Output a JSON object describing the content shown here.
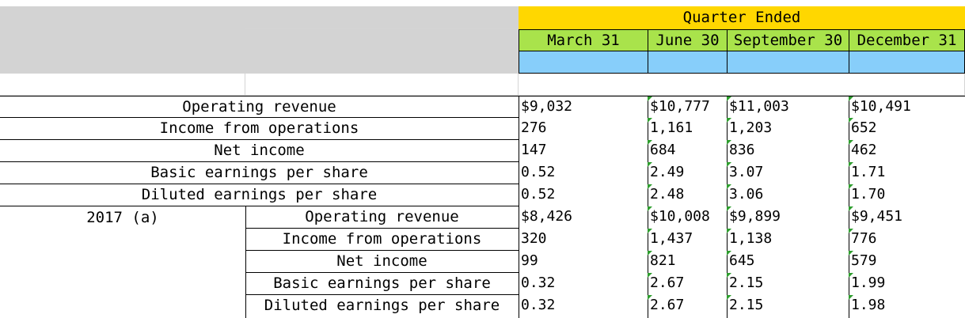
{
  "header": {
    "group_title": "Quarter Ended",
    "quarters": [
      "March 31",
      "June 30",
      "September 30",
      "December 31"
    ]
  },
  "sections": [
    {
      "label": "",
      "rows": [
        {
          "metric": "Operating revenue",
          "values": [
            "$9,032",
            "$10,777",
            "$11,003",
            "$10,491"
          ]
        },
        {
          "metric": "Income from operations",
          "values": [
            "276",
            "1,161",
            "1,203",
            "652"
          ]
        },
        {
          "metric": "Net income",
          "values": [
            "147",
            "684",
            "836",
            "462"
          ]
        },
        {
          "metric": "Basic earnings per share",
          "values": [
            "0.52",
            "2.49",
            "3.07",
            "1.71"
          ]
        },
        {
          "metric": "Diluted earnings per share",
          "values": [
            "0.52",
            "2.48",
            "3.06",
            "1.70"
          ]
        }
      ]
    },
    {
      "label": "2017 (a)",
      "rows": [
        {
          "metric": "Operating revenue",
          "values": [
            "$8,426",
            "$10,008",
            "$9,899",
            "$9,451"
          ]
        },
        {
          "metric": "Income from operations",
          "values": [
            "320",
            "1,437",
            "1,138",
            "776"
          ]
        },
        {
          "metric": "Net income",
          "values": [
            "99",
            "821",
            "645",
            "579"
          ]
        },
        {
          "metric": "Basic earnings per share",
          "values": [
            "0.32",
            "2.67",
            "2.15",
            "1.99"
          ]
        },
        {
          "metric": "Diluted earnings per share",
          "values": [
            "0.32",
            "2.67",
            "2.15",
            "1.98"
          ]
        }
      ]
    }
  ],
  "colors": {
    "header_yellow": "#ffd700",
    "header_green": "#a9e34b",
    "header_blue": "#87cefa",
    "label_grey": "#d3d3d3",
    "indicator_green": "#2e9e2e"
  }
}
